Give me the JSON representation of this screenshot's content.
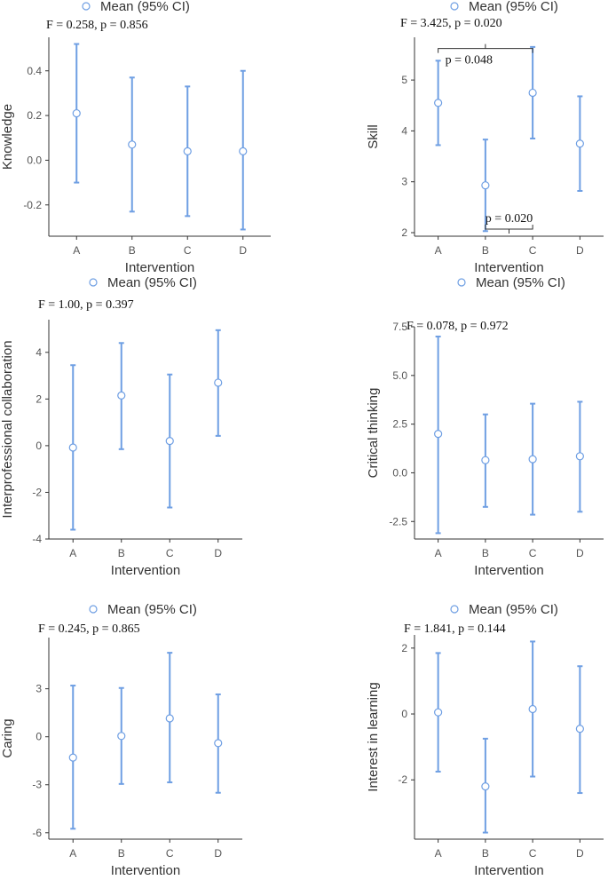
{
  "theme": {
    "accent": "#6f9fe3",
    "axis": "#333333",
    "text": "#333333"
  },
  "chart_data": [
    {
      "type": "errorbar",
      "xlabel": "Intervention",
      "ylabel": "Knowledge",
      "legend": "Mean (95% CI)",
      "stat_text": "F = 0.258, p = 0.856",
      "categories": [
        "A",
        "B",
        "C",
        "D"
      ],
      "means": [
        0.21,
        0.07,
        0.04,
        0.04
      ],
      "lower": [
        -0.1,
        -0.23,
        -0.25,
        -0.31
      ],
      "upper": [
        0.52,
        0.37,
        0.33,
        0.4
      ],
      "yticks": [
        -0.2,
        0.0,
        0.2,
        0.4
      ],
      "ytick_labels": [
        "-0.2",
        "0.0",
        "0.2",
        "0.4"
      ],
      "ylim": [
        -0.34,
        0.55
      ],
      "comparisons": []
    },
    {
      "type": "errorbar",
      "xlabel": "Intervention",
      "ylabel": "Skill",
      "legend": "Mean (95% CI)",
      "stat_text": "F = 3.425, p = 0.020",
      "categories": [
        "A",
        "B",
        "C",
        "D"
      ],
      "means": [
        4.55,
        2.93,
        4.75,
        3.75
      ],
      "lower": [
        3.72,
        2.03,
        3.85,
        2.82
      ],
      "upper": [
        5.38,
        3.83,
        5.65,
        4.68
      ],
      "yticks": [
        2,
        3,
        4,
        5
      ],
      "ytick_labels": [
        "2",
        "3",
        "4",
        "5"
      ],
      "ylim": [
        1.93,
        5.84
      ],
      "comparisons": [
        {
          "from": "A",
          "to": "C",
          "label": "p = 0.048",
          "y": 5.62,
          "side": "above"
        },
        {
          "from": "B",
          "to": "C",
          "label": "p = 0.020",
          "y": 2.07,
          "side": "below"
        }
      ]
    },
    {
      "type": "errorbar",
      "xlabel": "Intervention",
      "ylabel": "Interprofessional collaboration",
      "legend": "Mean (95% CI)",
      "stat_text": "F = 1.00, p = 0.397",
      "categories": [
        "A",
        "B",
        "C",
        "D"
      ],
      "means": [
        -0.08,
        2.15,
        0.2,
        2.7
      ],
      "lower": [
        -3.6,
        -0.15,
        -2.65,
        0.42
      ],
      "upper": [
        3.45,
        4.4,
        3.05,
        4.95
      ],
      "yticks": [
        -4,
        -2,
        0,
        2,
        4
      ],
      "ytick_labels": [
        "-4",
        "-2",
        "0",
        "2",
        "4"
      ],
      "ylim": [
        -4.0,
        5.4
      ],
      "comparisons": []
    },
    {
      "type": "errorbar",
      "xlabel": "Intervention",
      "ylabel": "Critical thinking",
      "legend": "Mean (95% CI)",
      "stat_text": "F = 0.078, p = 0.972",
      "categories": [
        "A",
        "B",
        "C",
        "D"
      ],
      "means": [
        2.0,
        0.65,
        0.7,
        0.85
      ],
      "lower": [
        -3.1,
        -1.75,
        -2.15,
        -2.0
      ],
      "upper": [
        7.0,
        3.0,
        3.55,
        3.65
      ],
      "yticks": [
        -2.5,
        0.0,
        2.5,
        5.0,
        7.5
      ],
      "ytick_labels": [
        "-2.5",
        "0.0",
        "2.5",
        "5.0",
        "7.5"
      ],
      "ylim": [
        -3.4,
        7.5
      ],
      "comparisons": []
    },
    {
      "type": "errorbar",
      "xlabel": "Intervention",
      "ylabel": "Caring",
      "legend": "Mean (95% CI)",
      "stat_text": "F = 0.245, p = 0.865",
      "categories": [
        "A",
        "B",
        "C",
        "D"
      ],
      "means": [
        -1.3,
        0.05,
        1.15,
        -0.4
      ],
      "lower": [
        -5.75,
        -2.95,
        -2.85,
        -3.5
      ],
      "upper": [
        3.2,
        3.05,
        5.25,
        2.65
      ],
      "yticks": [
        -6,
        -3,
        0,
        3
      ],
      "ytick_labels": [
        "-6",
        "-3",
        "0",
        "3"
      ],
      "ylim": [
        -6.4,
        6.2
      ],
      "comparisons": []
    },
    {
      "type": "errorbar",
      "xlabel": "Intervention",
      "ylabel": "Interest in learning",
      "legend": "Mean (95% CI)",
      "stat_text": "F = 1.841, p = 0.144",
      "categories": [
        "A",
        "B",
        "C",
        "D"
      ],
      "means": [
        0.05,
        -2.2,
        0.15,
        -0.45
      ],
      "lower": [
        -1.75,
        -3.6,
        -1.9,
        -2.4
      ],
      "upper": [
        1.85,
        -0.75,
        2.2,
        1.45
      ],
      "yticks": [
        -2,
        0,
        2
      ],
      "ytick_labels": [
        "-2",
        "0",
        "2"
      ],
      "ylim": [
        -3.8,
        2.4
      ],
      "comparisons": []
    }
  ]
}
